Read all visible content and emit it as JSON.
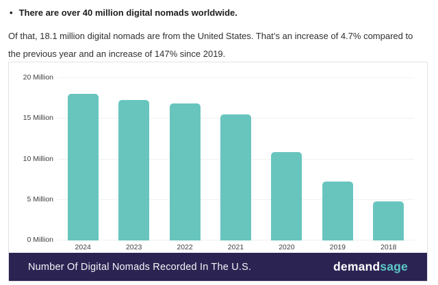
{
  "page": {
    "bullet_glyph": "•",
    "bullet_text": "There are over 40 million digital nomads worldwide.",
    "paragraph": "Of that, 18.1 million digital nomads are from the United States. That’s an increase of 4.7% compared to the previous year and an increase of 147% since 2019."
  },
  "chart_data": {
    "type": "bar",
    "title": "Number Of Digital Nomads Recorded In The U.S.",
    "categories": [
      "2024",
      "2023",
      "2022",
      "2021",
      "2020",
      "2019",
      "2018"
    ],
    "values": [
      18.1,
      17.3,
      16.9,
      15.5,
      10.9,
      7.3,
      4.8
    ],
    "unit": "Million",
    "xlabel": "",
    "ylabel": "",
    "ylim": [
      0,
      20
    ],
    "yticks": [
      0,
      5,
      10,
      15,
      20
    ],
    "ytick_labels": [
      "0 Million",
      "5 Million",
      "10 Million",
      "15 Million",
      "20 Million"
    ],
    "grid": true,
    "legend": false
  },
  "footer": {
    "caption": "Number Of Digital Nomads Recorded In The U.S.",
    "brand": {
      "part1": "demand",
      "part2": "sage"
    }
  },
  "colors": {
    "bar": "#68C5BE",
    "footer_background": "#2B2453",
    "footer_text": "#F5F5F7",
    "brand_demand": "#FFFFFF",
    "brand_sage": "#5CC9C7",
    "gridline": "#F1F1F1",
    "axis_label": "#3D3D3D",
    "body_text": "#2E2E2E"
  }
}
